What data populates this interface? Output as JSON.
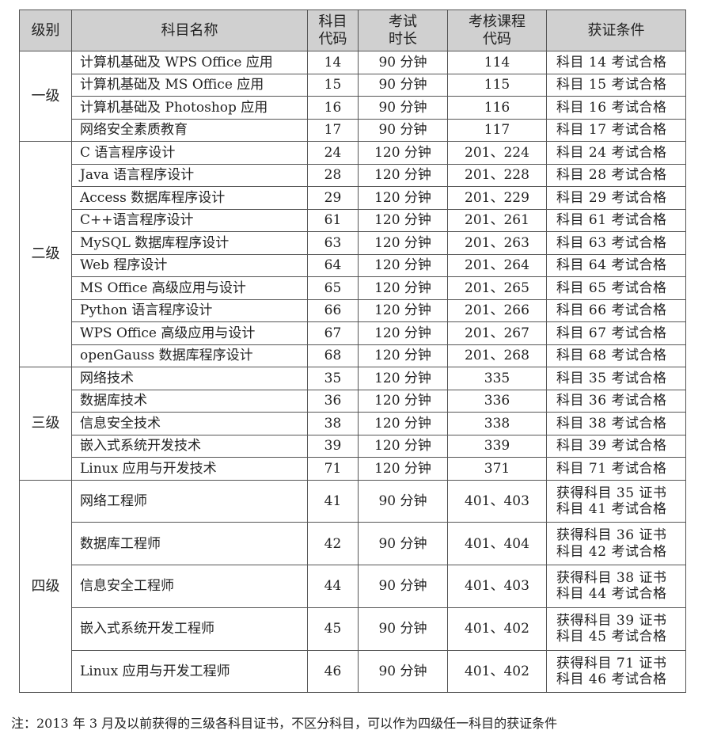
{
  "headers": [
    "级别",
    "科目名称",
    "科目\n代码",
    "考试\n时长",
    "考核课程\n代码",
    "获证条件"
  ],
  "groups": [
    {
      "level": "一级",
      "rows": [
        [
          "计算机基础及 WPS Office 应用",
          "14",
          "90 分钟",
          "114",
          "科目 14 考试合格"
        ],
        [
          "计算机基础及 MS Office 应用",
          "15",
          "90 分钟",
          "115",
          "科目 15 考试合格"
        ],
        [
          "计算机基础及 Photoshop 应用",
          "16",
          "90 分钟",
          "116",
          "科目 16 考试合格"
        ],
        [
          "网络安全素质教育",
          "17",
          "90 分钟",
          "117",
          "科目 17 考试合格"
        ]
      ]
    },
    {
      "level": "二级",
      "rows": [
        [
          "C 语言程序设计",
          "24",
          "120 分钟",
          "201、224",
          "科目 24 考试合格"
        ],
        [
          "Java 语言程序设计",
          "28",
          "120 分钟",
          "201、228",
          "科目 28 考试合格"
        ],
        [
          "Access 数据库程序设计",
          "29",
          "120 分钟",
          "201、229",
          "科目 29 考试合格"
        ],
        [
          "C++语言程序设计",
          "61",
          "120 分钟",
          "201、261",
          "科目 61 考试合格"
        ],
        [
          "MySQL 数据库程序设计",
          "63",
          "120 分钟",
          "201、263",
          "科目 63 考试合格"
        ],
        [
          "Web 程序设计",
          "64",
          "120 分钟",
          "201、264",
          "科目 64 考试合格"
        ],
        [
          "MS Office 高级应用与设计",
          "65",
          "120 分钟",
          "201、265",
          "科目 65 考试合格"
        ],
        [
          "Python 语言程序设计",
          "66",
          "120 分钟",
          "201、266",
          "科目 66 考试合格"
        ],
        [
          "WPS Office 高级应用与设计",
          "67",
          "120 分钟",
          "201、267",
          "科目 67 考试合格"
        ],
        [
          "openGauss 数据库程序设计",
          "68",
          "120 分钟",
          "201、268",
          "科目 68 考试合格"
        ]
      ]
    },
    {
      "level": "三级",
      "rows": [
        [
          "网络技术",
          "35",
          "120 分钟",
          "335",
          "科目 35 考试合格"
        ],
        [
          "数据库技术",
          "36",
          "120 分钟",
          "336",
          "科目 36 考试合格"
        ],
        [
          "信息安全技术",
          "38",
          "120 分钟",
          "338",
          "科目 38 考试合格"
        ],
        [
          "嵌入式系统开发技术",
          "39",
          "120 分钟",
          "339",
          "科目 39 考试合格"
        ],
        [
          "Linux 应用与开发技术",
          "71",
          "120 分钟",
          "371",
          "科目 71 考试合格"
        ]
      ]
    },
    {
      "level": "四级",
      "rows": [
        [
          "网络工程师",
          "41",
          "90 分钟",
          "401、403",
          "获得科目 35 证书\n科目 41 考试合格"
        ],
        [
          "数据库工程师",
          "42",
          "90 分钟",
          "401、404",
          "获得科目 36 证书\n科目 42 考试合格"
        ],
        [
          "信息安全工程师",
          "44",
          "90 分钟",
          "401、403",
          "获得科目 38 证书\n科目 44 考试合格"
        ],
        [
          "嵌入式系统开发工程师",
          "45",
          "90 分钟",
          "401、402",
          "获得科目 39 证书\n科目 45 考试合格"
        ],
        [
          "Linux 应用与开发工程师",
          "46",
          "90 分钟",
          "401、402",
          "获得科目 71 证书\n科目 46 考试合格"
        ]
      ]
    }
  ],
  "note": "注：2013 年 3 月及以前获得的三级各科目证书，不区分科目，可以作为四级任一科目的获证条件",
  "colors": {
    "header_bg": "#d0d0d0",
    "border": "#555555"
  }
}
